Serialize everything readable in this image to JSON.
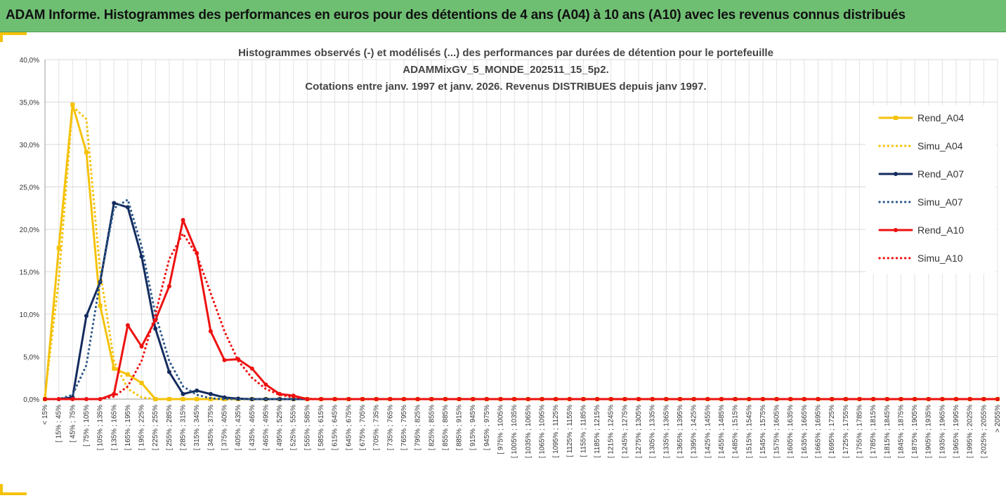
{
  "header": {
    "title": "ADAM Informe. Histogrammes des performances en euros pour des détentions de 4 ans (A04) à 10 ans (A10) avec les revenus connus distribués"
  },
  "chart_data": {
    "type": "line",
    "title": [
      "Histogrammes observés (-) et modélisés (...) des performances par durées de détention pour le portefeuille",
      "ADAMMixGV_5_MONDE_202511_15_5p2.",
      "Cotations entre janv. 1997 et janv. 2026. Revenus DISTRIBUES depuis janv 1997."
    ],
    "xlabel": "",
    "ylabel": "",
    "ylim": [
      0,
      40
    ],
    "y_ticks": [
      "0,0%",
      "5,0%",
      "10,0%",
      "15,0%",
      "20,0%",
      "25,0%",
      "30,0%",
      "35,0%",
      "40,0%"
    ],
    "categories": [
      "< 15%",
      "[ 15% ; 45%",
      "[ 45% ; 75%",
      "[ 75% ; 105%",
      "[ 105% ; 135%",
      "[ 135% ; 165%",
      "[ 165% ; 195%",
      "[ 195% ; 225%",
      "[ 225% ; 255%",
      "[ 255% ; 285%",
      "[ 285% ; 315%",
      "[ 315% ; 345%",
      "[ 345% ; 375%",
      "[ 375% ; 405%",
      "[ 405% ; 435%",
      "[ 435% ; 465%",
      "[ 465% ; 495%",
      "[ 495% ; 525%",
      "[ 525% ; 555%",
      "[ 555% ; 585%",
      "[ 585% ; 615%",
      "[ 615% ; 645%",
      "[ 645% ; 675%",
      "[ 675% ; 705%",
      "[ 705% ; 735%",
      "[ 735% ; 765%",
      "[ 765% ; 795%",
      "[ 795% ; 825%",
      "[ 825% ; 855%",
      "[ 855% ; 885%",
      "[ 885% ; 915%",
      "[ 915% ; 945%",
      "[ 945% ; 975%",
      "[ 975% ; 1005%",
      "[ 1005% ; 1035%",
      "[ 1035% ; 1065%",
      "[ 1065% ; 1095%",
      "[ 1095% ; 1125%",
      "[ 1125% ; 1155%",
      "[ 1155% ; 1185%",
      "[ 1185% ; 1215%",
      "[ 1215% ; 1245%",
      "[ 1245% ; 1275%",
      "[ 1275% ; 1305%",
      "[ 1305% ; 1335%",
      "[ 1335% ; 1365%",
      "[ 1365% ; 1395%",
      "[ 1395% ; 1425%",
      "[ 1425% ; 1455%",
      "[ 1455% ; 1485%",
      "[ 1485% ; 1515%",
      "[ 1515% ; 1545%",
      "[ 1545% ; 1575%",
      "[ 1575% ; 1605%",
      "[ 1605% ; 1635%",
      "[ 1635% ; 1665%",
      "[ 1665% ; 1695%",
      "[ 1695% ; 1725%",
      "[ 1725% ; 1755%",
      "[ 1755% ; 1785%",
      "[ 1785% ; 1815%",
      "[ 1815% ; 1845%",
      "[ 1845% ; 1875%",
      "[ 1875% ; 1905%",
      "[ 1905% ; 1935%",
      "[ 1935% ; 1965%",
      "[ 1965% ; 1995%",
      "[ 1995% ; 2025%",
      "[ 2025% ; 2055%",
      "> 2055%"
    ],
    "series": [
      {
        "name": "Rend_A04",
        "color": "#f5c20a",
        "style": "solid",
        "marker": "square",
        "values": [
          0,
          17.8,
          34.7,
          29.1,
          11.0,
          3.6,
          2.9,
          1.9,
          0,
          0,
          0,
          0,
          0,
          0,
          0,
          0,
          0,
          0,
          0,
          0,
          0,
          0,
          0,
          0,
          0,
          0,
          0,
          0,
          0,
          0,
          0,
          0,
          0,
          0,
          0,
          0,
          0,
          0,
          0,
          0,
          0,
          0,
          0,
          0,
          0,
          0,
          0,
          0,
          0,
          0,
          0,
          0,
          0,
          0,
          0,
          0,
          0,
          0,
          0,
          0,
          0,
          0,
          0,
          0,
          0,
          0,
          0,
          0,
          0,
          0
        ]
      },
      {
        "name": "Simu_A04",
        "color": "#f5c20a",
        "style": "dotted",
        "marker": "none",
        "values": [
          0.5,
          14.0,
          34.5,
          33.0,
          15.0,
          4.5,
          1.2,
          0.2,
          0,
          0,
          0,
          0,
          0,
          0,
          0,
          0,
          0,
          0,
          0,
          0,
          0,
          0,
          0,
          0,
          0,
          0,
          0,
          0,
          0,
          0,
          0,
          0,
          0,
          0,
          0,
          0,
          0,
          0,
          0,
          0,
          0,
          0,
          0,
          0,
          0,
          0,
          0,
          0,
          0,
          0,
          0,
          0,
          0,
          0,
          0,
          0,
          0,
          0,
          0,
          0,
          0,
          0,
          0,
          0,
          0,
          0,
          0,
          0,
          0,
          0
        ]
      },
      {
        "name": "Rend_A07",
        "color": "#132b5e",
        "style": "solid",
        "marker": "circle",
        "values": [
          0,
          0,
          0.2,
          9.8,
          13.8,
          23.1,
          22.6,
          16.8,
          8.3,
          3.2,
          0.6,
          1.0,
          0.6,
          0.2,
          0.05,
          0,
          0,
          0,
          0,
          0,
          0,
          0,
          0,
          0,
          0,
          0,
          0,
          0,
          0,
          0,
          0,
          0,
          0,
          0,
          0,
          0,
          0,
          0,
          0,
          0,
          0,
          0,
          0,
          0,
          0,
          0,
          0,
          0,
          0,
          0,
          0,
          0,
          0,
          0,
          0,
          0,
          0,
          0,
          0,
          0,
          0,
          0,
          0,
          0,
          0,
          0,
          0,
          0,
          0,
          0
        ]
      },
      {
        "name": "Simu_A07",
        "color": "#2e5a8c",
        "style": "dotted",
        "marker": "none",
        "values": [
          0,
          0,
          0.5,
          4.0,
          14.0,
          22.5,
          23.5,
          18.0,
          10.0,
          4.5,
          1.5,
          0.5,
          0.1,
          0,
          0,
          0,
          0,
          0,
          0,
          0,
          0,
          0,
          0,
          0,
          0,
          0,
          0,
          0,
          0,
          0,
          0,
          0,
          0,
          0,
          0,
          0,
          0,
          0,
          0,
          0,
          0,
          0,
          0,
          0,
          0,
          0,
          0,
          0,
          0,
          0,
          0,
          0,
          0,
          0,
          0,
          0,
          0,
          0,
          0,
          0,
          0,
          0,
          0,
          0,
          0,
          0,
          0,
          0,
          0,
          0
        ]
      },
      {
        "name": "Rend_A10",
        "color": "#ee1010",
        "style": "solid",
        "marker": "circle",
        "values": [
          0,
          0,
          0,
          0,
          0,
          0.6,
          8.7,
          6.2,
          9.3,
          13.3,
          21.1,
          17.2,
          8.0,
          4.6,
          4.7,
          3.6,
          1.7,
          0.6,
          0.4,
          0,
          0,
          0,
          0,
          0,
          0,
          0,
          0,
          0,
          0,
          0,
          0,
          0,
          0,
          0,
          0,
          0,
          0,
          0,
          0,
          0,
          0,
          0,
          0,
          0,
          0,
          0,
          0,
          0,
          0,
          0,
          0,
          0,
          0,
          0,
          0,
          0,
          0,
          0,
          0,
          0,
          0,
          0,
          0,
          0,
          0,
          0,
          0,
          0,
          0,
          0
        ]
      },
      {
        "name": "Simu_A10",
        "color": "#ee1010",
        "style": "dotted",
        "marker": "none",
        "values": [
          0,
          0,
          0,
          0,
          0,
          0.3,
          1.5,
          4.5,
          10.0,
          16.5,
          19.5,
          17.0,
          12.5,
          8.0,
          4.5,
          2.5,
          1.2,
          0.5,
          0.2,
          0.05,
          0,
          0,
          0,
          0,
          0,
          0,
          0,
          0,
          0,
          0,
          0,
          0,
          0,
          0,
          0,
          0,
          0,
          0,
          0,
          0,
          0,
          0,
          0,
          0,
          0,
          0,
          0,
          0,
          0,
          0,
          0,
          0,
          0,
          0,
          0,
          0,
          0,
          0,
          0,
          0,
          0,
          0,
          0,
          0,
          0,
          0,
          0,
          0,
          0,
          0
        ]
      }
    ],
    "grid": true,
    "legend": "right"
  }
}
